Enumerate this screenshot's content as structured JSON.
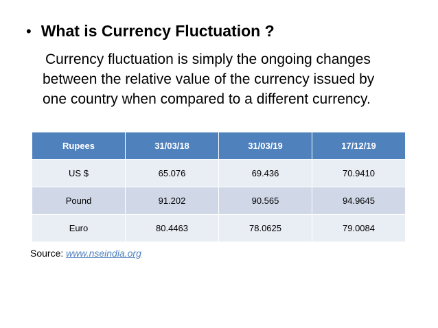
{
  "heading": {
    "bullet": "•",
    "title": "What is Currency Fluctuation ?"
  },
  "body": {
    "lines": [
      "Currency fluctuation is simply the ongoing changes",
      "between the relative value of the currency issued by",
      "one country when compared to a different currency."
    ]
  },
  "table": {
    "headers": [
      "Rupees",
      "31/03/18",
      "31/03/19",
      "17/12/19"
    ],
    "rows": [
      [
        "US $",
        "65.076",
        "69.436",
        "70.9410"
      ],
      [
        "Pound",
        "91.202",
        "90.565",
        "94.9645"
      ],
      [
        "Euro",
        "80.4463",
        "78.0625",
        "79.0084"
      ]
    ],
    "header_color": "#4f81bd",
    "row_color_light": "#e9edf4",
    "row_color_dark": "#d0d8e8"
  },
  "source": {
    "label": "Source: ",
    "link_text": "www.nseindia.org",
    "link_color": "#4f81bd"
  }
}
